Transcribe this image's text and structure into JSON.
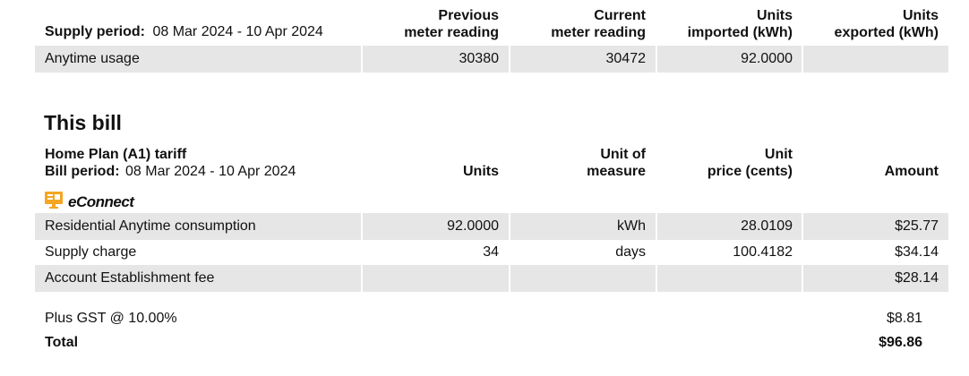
{
  "supply": {
    "period_label": "Supply period:",
    "period_value": "08 Mar 2024 - 10 Apr 2024",
    "headers": {
      "previous": [
        "Previous",
        "meter reading"
      ],
      "current": [
        "Current",
        "meter reading"
      ],
      "imported": [
        "Units",
        "imported (kWh)"
      ],
      "exported": [
        "Units",
        "exported (kWh)"
      ]
    },
    "row": {
      "label": "Anytime usage",
      "previous": "30380",
      "current": "30472",
      "imported": "92.0000",
      "exported": ""
    }
  },
  "bill": {
    "title": "This bill",
    "tariff": "Home Plan (A1) tariff",
    "period_label": "Bill period:",
    "period_value": "08 Mar 2024 - 10 Apr 2024",
    "headers": {
      "units": "Units",
      "uom": [
        "Unit of",
        "measure"
      ],
      "price": [
        "Unit",
        "price (cents)"
      ],
      "amount": "Amount"
    },
    "provider": "eConnect",
    "provider_icon": "econnect-logo-icon",
    "items": [
      {
        "label": "Residential Anytime consumption",
        "units": "92.0000",
        "uom": "kWh",
        "price": "28.0109",
        "amount": "$25.77"
      },
      {
        "label": "Supply charge",
        "units": "34",
        "uom": "days",
        "price": "100.4182",
        "amount": "$34.14"
      },
      {
        "label": "Account Establishment fee",
        "units": "",
        "uom": "",
        "price": "",
        "amount": "$28.14"
      }
    ],
    "gst_label": "Plus GST @ 10.00%",
    "gst_amount": "$8.81",
    "total_label": "Total",
    "total_amount": "$96.86"
  },
  "colors": {
    "shade": "#e6e6e6",
    "logo_accent": "#f5a623"
  }
}
